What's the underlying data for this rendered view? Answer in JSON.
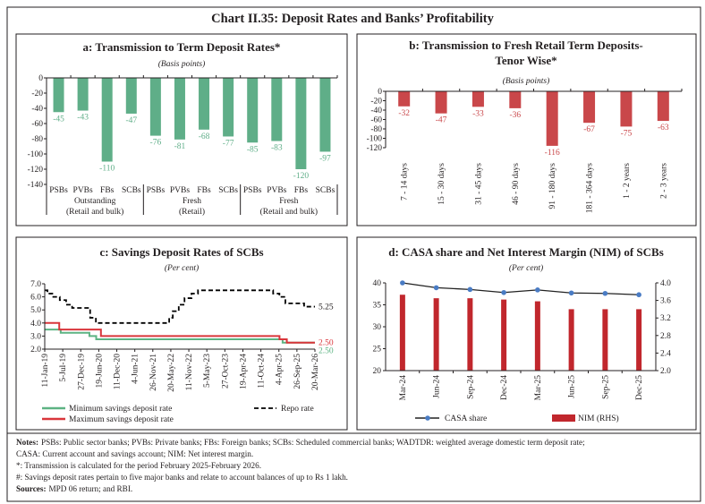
{
  "title": "Chart II.35: Deposit Rates and Banks’ Profitability",
  "colors": {
    "green": "#5fae88",
    "red_b": "#c9474a",
    "red_line": "#d9363b",
    "green_line": "#5db383",
    "nim_red": "#c1272d",
    "casa_blue": "#4a7cc4"
  },
  "chart_data": [
    {
      "type": "bar",
      "title": "a: Transmission to Term Deposit Rates*",
      "unit": "(Basis points)",
      "categories": [
        "PSBs",
        "PVBs",
        "FBs",
        "SCBs",
        "PSBs",
        "PVBs",
        "FBs",
        "SCBs",
        "PSBs",
        "PVBs",
        "FBs",
        "SCBs"
      ],
      "groups": [
        {
          "line1": "Outstanding",
          "line2": "(Retail and bulk)"
        },
        {
          "line1": "Fresh",
          "line2": "(Retail)"
        },
        {
          "line1": "Fresh",
          "line2": "(Retail and bulk)"
        }
      ],
      "values": [
        -45,
        -43,
        -110,
        -47,
        -76,
        -81,
        -68,
        -77,
        -85,
        -83,
        -120,
        -97
      ],
      "ylim": [
        -140,
        0
      ],
      "yticks": [
        "0",
        "-20",
        "-40",
        "-60",
        "-80",
        "-100",
        "-120",
        "-140"
      ],
      "color": "#5fae88"
    },
    {
      "type": "bar",
      "title_line1": "b: Transmission to Fresh Retail Term Deposits-",
      "title_line2": "Tenor Wise*",
      "unit": "(Basis points)",
      "categories": [
        "7 - 14 days",
        "15 - 30 days",
        "31 - 45 days",
        "46 - 90 days",
        "91 - 180 days",
        "181 - 364 days",
        "1 - 2 years",
        "2 - 3 years"
      ],
      "values": [
        -32,
        -47,
        -33,
        -36,
        -116,
        -67,
        -75,
        -63
      ],
      "ylim": [
        -120,
        0
      ],
      "yticks": [
        "0",
        "-20",
        "-40",
        "-60",
        "-80",
        "-100",
        "-120"
      ],
      "color": "#c9474a"
    },
    {
      "type": "line",
      "title": "c: Savings Deposit Rates of SCBs",
      "unit": "(Per cent)",
      "xlim": [
        "2019-01-11",
        "2026-03-20"
      ],
      "xticks": [
        [
          "11-Jan-19",
          "2019-01-11"
        ],
        [
          "5-Jul-19",
          "2019-07-05"
        ],
        [
          "27-Dec-19",
          "2019-12-27"
        ],
        [
          "19-Jun-20",
          "2020-06-19"
        ],
        [
          "11-Dec-20",
          "2020-12-11"
        ],
        [
          "4-Jun-21",
          "2021-06-04"
        ],
        [
          "26-Nov-21",
          "2021-11-26"
        ],
        [
          "20-May-22",
          "2022-05-20"
        ],
        [
          "11-Nov-22",
          "2022-11-11"
        ],
        [
          "5-May-23",
          "2023-05-05"
        ],
        [
          "27-Oct-23",
          "2023-10-27"
        ],
        [
          "19-Apr-24",
          "2024-04-19"
        ],
        [
          "11-Oct-24",
          "2024-10-11"
        ],
        [
          "4-Apr-25",
          "2025-04-04"
        ],
        [
          "26-Sep-25",
          "2025-09-26"
        ],
        [
          "20-Mar-26",
          "2026-03-20"
        ]
      ],
      "ylim": [
        2.0,
        7.0
      ],
      "yticks": [
        "2.0",
        "3.0",
        "4.0",
        "5.0",
        "6.0",
        "7.0"
      ],
      "series": [
        {
          "name": "Minimum savings deposit rate",
          "color": "#5db383",
          "style": "solid",
          "end_label": "2.50",
          "steps": [
            [
              "2019-01-11",
              3.5
            ],
            [
              "2019-06-15",
              3.25
            ],
            [
              "2020-03-20",
              3.0
            ],
            [
              "2020-05-25",
              2.75
            ],
            [
              "2025-05-10",
              2.5
            ],
            [
              "2026-03-20",
              2.5
            ]
          ]
        },
        {
          "name": "Maximum savings deposit rate",
          "color": "#d9363b",
          "style": "solid",
          "end_label": "2.50",
          "steps": [
            [
              "2019-01-11",
              4.0
            ],
            [
              "2019-06-01",
              3.5
            ],
            [
              "2020-07-10",
              3.0
            ],
            [
              "2025-04-10",
              2.75
            ],
            [
              "2025-06-20",
              2.5
            ],
            [
              "2026-03-20",
              2.5
            ]
          ]
        },
        {
          "name": "Repo rate",
          "color": "#000000",
          "style": "dashed",
          "end_label": "5.25",
          "steps": [
            [
              "2019-01-11",
              6.5
            ],
            [
              "2019-02-07",
              6.25
            ],
            [
              "2019-04-04",
              6.0
            ],
            [
              "2019-06-06",
              5.75
            ],
            [
              "2019-08-07",
              5.4
            ],
            [
              "2019-10-04",
              5.15
            ],
            [
              "2020-03-27",
              4.4
            ],
            [
              "2020-05-22",
              4.0
            ],
            [
              "2022-05-04",
              4.4
            ],
            [
              "2022-06-08",
              4.9
            ],
            [
              "2022-08-05",
              5.4
            ],
            [
              "2022-09-30",
              5.9
            ],
            [
              "2022-12-07",
              6.25
            ],
            [
              "2023-02-08",
              6.5
            ],
            [
              "2025-02-07",
              6.25
            ],
            [
              "2025-04-09",
              6.0
            ],
            [
              "2025-06-06",
              5.5
            ],
            [
              "2025-12-05",
              5.25
            ],
            [
              "2026-03-20",
              5.25
            ]
          ]
        }
      ]
    },
    {
      "type": "bar+line",
      "title": "d: CASA share and Net Interest Margin (NIM) of SCBs",
      "unit": "(Per cent)",
      "categories": [
        "Mar-24",
        "Jun-24",
        "Sep-24",
        "Dec-24",
        "Mar-25",
        "Jun-25",
        "Sep-25",
        "Dec-25"
      ],
      "ylim_left": [
        20,
        40
      ],
      "yticks_left": [
        "20",
        "25",
        "30",
        "35",
        "40"
      ],
      "ylim_right": [
        2.0,
        4.0
      ],
      "yticks_right": [
        "2.0",
        "2.4",
        "2.8",
        "3.2",
        "3.6",
        "4.0"
      ],
      "series": [
        {
          "name": "CASA share",
          "type": "line",
          "axis": "left",
          "color": "#4a7cc4",
          "values": [
            40.0,
            38.9,
            38.5,
            37.8,
            38.4,
            37.7,
            37.6,
            37.3
          ]
        },
        {
          "name": "NIM (RHS)",
          "type": "bar",
          "axis": "right",
          "color": "#c1272d",
          "values": [
            3.73,
            3.65,
            3.65,
            3.62,
            3.58,
            3.4,
            3.4,
            3.4
          ]
        }
      ]
    }
  ],
  "notes": {
    "notes_label": "Notes:",
    "line1": "PSBs: Public sector banks; PVBs: Private banks; FBs: Foreign banks; SCBs: Scheduled commercial banks; WADTDR: weighted average domestic term deposit rate;",
    "line2": "CASA: Current account and savings account; NIM: Net interest margin.",
    "line3": "*: Transmission is calculated for the period February 2025-February 2026.",
    "line4": "#: Savings deposit rates pertain to five major banks and relate to account balances of up to Rs 1 lakh.",
    "sources_label": "Sources:",
    "sources": "MPD 06 return; and RBI."
  }
}
